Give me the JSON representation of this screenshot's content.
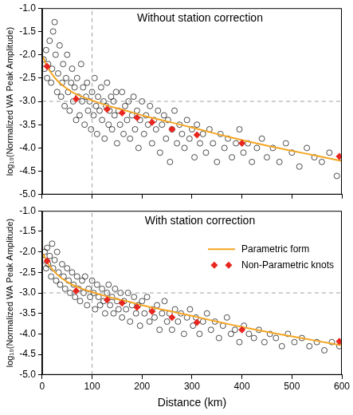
{
  "chart_data": [
    {
      "type": "scatter",
      "title": "Without station correction",
      "y_label": "log₁₀(Normalized WA Peak Amplitude)",
      "xlim": [
        0,
        600
      ],
      "xticks": [
        0,
        100,
        200,
        300,
        400,
        500,
        600
      ],
      "ylim": [
        -5,
        -1
      ],
      "yticks": [
        {
          "value": -5,
          "label": "-5.0"
        },
        -4.5,
        {
          "value": -4,
          "label": "-4.0"
        },
        -3.5,
        {
          "value": -3,
          "label": "-3.0"
        },
        -2.5,
        {
          "value": -2,
          "label": "-2.0"
        },
        -1.5,
        {
          "value": -1,
          "label": "-1.0"
        }
      ],
      "grid": false,
      "tick_labels": "y",
      "vlines": [
        100
      ],
      "hlines": [
        -3
      ],
      "series": [
        {
          "type": "scatter",
          "marker": "circle",
          "color": "#000000",
          "x": [
            3,
            5,
            8,
            10,
            12,
            15,
            18,
            20,
            22,
            25,
            27,
            30,
            32,
            35,
            38,
            40,
            42,
            45,
            48,
            50,
            52,
            55,
            58,
            60,
            62,
            65,
            68,
            70,
            72,
            75,
            78,
            80,
            82,
            85,
            88,
            90,
            92,
            95,
            98,
            100,
            103,
            105,
            108,
            110,
            112,
            115,
            118,
            120,
            123,
            125,
            128,
            130,
            133,
            135,
            138,
            140,
            143,
            145,
            148,
            150,
            153,
            156,
            160,
            163,
            166,
            170,
            173,
            176,
            180,
            183,
            186,
            190,
            193,
            196,
            200,
            204,
            208,
            212,
            216,
            220,
            224,
            228,
            232,
            236,
            240,
            244,
            248,
            252,
            256,
            260,
            265,
            270,
            275,
            280,
            285,
            290,
            295,
            300,
            305,
            310,
            316,
            322,
            328,
            335,
            342,
            350,
            357,
            365,
            372,
            380,
            388,
            395,
            403,
            412,
            420,
            430,
            440,
            450,
            462,
            475,
            488,
            500,
            515,
            530,
            545,
            560,
            575,
            590,
            598
          ],
          "values": [
            -2.1,
            -2.3,
            -1.9,
            -2.5,
            -2.2,
            -1.7,
            -2.6,
            -2.3,
            -1.5,
            -1.3,
            -2.0,
            -2.8,
            -2.4,
            -1.8,
            -2.9,
            -2.6,
            -2.2,
            -3.1,
            -2.5,
            -2.0,
            -2.8,
            -3.2,
            -2.6,
            -2.3,
            -3.0,
            -2.7,
            -3.4,
            -2.5,
            -2.9,
            -3.3,
            -2.2,
            -3.0,
            -2.7,
            -3.5,
            -2.9,
            -2.6,
            -3.2,
            -3.0,
            -3.6,
            -2.8,
            -3.3,
            -2.5,
            -3.1,
            -3.7,
            -2.9,
            -3.2,
            -2.7,
            -3.4,
            -3.0,
            -3.8,
            -3.1,
            -2.6,
            -3.5,
            -3.2,
            -2.9,
            -3.6,
            -3.0,
            -3.3,
            -2.8,
            -3.9,
            -3.2,
            -3.5,
            -2.8,
            -3.7,
            -3.1,
            -3.4,
            -3.0,
            -3.8,
            -3.3,
            -2.9,
            -3.6,
            -3.2,
            -4.0,
            -3.4,
            -3.0,
            -3.7,
            -3.3,
            -3.5,
            -3.1,
            -3.9,
            -3.4,
            -3.6,
            -3.2,
            -4.1,
            -3.5,
            -3.3,
            -3.8,
            -3.4,
            -4.3,
            -3.6,
            -3.2,
            -3.9,
            -3.5,
            -3.7,
            -4.0,
            -3.4,
            -3.8,
            -3.6,
            -4.2,
            -3.5,
            -3.9,
            -3.7,
            -4.1,
            -3.6,
            -3.9,
            -4.3,
            -3.7,
            -4.0,
            -3.8,
            -4.2,
            -3.9,
            -3.6,
            -4.1,
            -3.9,
            -4.3,
            -4.0,
            -3.8,
            -4.2,
            -4.0,
            -4.3,
            -3.9,
            -4.1,
            -4.4,
            -4.0,
            -4.2,
            -4.3,
            -4.1,
            -4.6,
            -4.2
          ]
        },
        {
          "type": "line",
          "color": "#f5a623",
          "x": [
            2,
            10,
            20,
            30,
            40,
            50,
            60,
            80,
            100,
            125,
            150,
            175,
            200,
            250,
            300,
            350,
            400,
            450,
            500,
            550,
            600
          ],
          "values": [
            -2.05,
            -2.25,
            -2.42,
            -2.55,
            -2.65,
            -2.73,
            -2.8,
            -2.9,
            -2.98,
            -3.07,
            -3.15,
            -3.22,
            -3.3,
            -3.43,
            -3.56,
            -3.7,
            -3.83,
            -3.95,
            -4.06,
            -4.17,
            -4.28
          ]
        },
        {
          "type": "scatter",
          "marker": "diamond",
          "color": "#e8251f",
          "x": [
            10,
            68,
            130,
            160,
            190,
            220,
            260,
            310,
            400,
            595
          ],
          "values": [
            -2.25,
            -2.95,
            -3.17,
            -3.25,
            -3.35,
            -3.45,
            -3.6,
            -3.72,
            -3.9,
            -4.18
          ]
        }
      ]
    },
    {
      "type": "scatter",
      "title": "With station correction",
      "x_label": "Distance (km)",
      "y_label": "log₁₀(Normalized WA Peak Amplitude)",
      "xlim": [
        0,
        600
      ],
      "xticks": [
        0,
        100,
        200,
        300,
        400,
        500,
        600
      ],
      "ylim": [
        -5,
        -1
      ],
      "yticks": [
        {
          "value": -5,
          "label": "-5.0"
        },
        -4.5,
        {
          "value": -4,
          "label": "-4.0"
        },
        -3.5,
        {
          "value": -3,
          "label": "-3.0"
        },
        -2.5,
        {
          "value": -2,
          "label": "-2.0"
        },
        -1.5,
        {
          "value": -1,
          "label": "-1.0"
        }
      ],
      "grid": false,
      "legend": "upper right",
      "vlines": [
        100
      ],
      "hlines": [
        -3
      ],
      "series": [
        {
          "type": "scatter",
          "marker": "circle",
          "color": "#000000",
          "x": [
            3,
            5,
            8,
            10,
            12,
            15,
            18,
            20,
            22,
            25,
            28,
            30,
            33,
            36,
            40,
            43,
            46,
            50,
            53,
            56,
            60,
            63,
            66,
            70,
            73,
            76,
            80,
            83,
            86,
            90,
            93,
            96,
            100,
            103,
            106,
            110,
            113,
            116,
            120,
            123,
            126,
            130,
            133,
            136,
            140,
            143,
            146,
            150,
            153,
            157,
            160,
            164,
            168,
            172,
            176,
            180,
            184,
            188,
            192,
            196,
            200,
            205,
            210,
            215,
            220,
            225,
            230,
            235,
            240,
            245,
            250,
            255,
            260,
            266,
            272,
            278,
            284,
            290,
            296,
            302,
            308,
            315,
            322,
            330,
            338,
            346,
            354,
            362,
            370,
            378,
            386,
            395,
            404,
            414,
            424,
            434,
            445,
            456,
            468,
            480,
            492,
            505,
            520,
            535,
            550,
            565,
            580,
            595
          ],
          "values": [
            -2.2,
            -2.0,
            -2.4,
            -1.9,
            -2.3,
            -2.1,
            -2.6,
            -1.8,
            -2.4,
            -2.2,
            -2.7,
            -2.0,
            -2.5,
            -2.8,
            -2.3,
            -2.6,
            -2.9,
            -2.4,
            -2.7,
            -3.0,
            -2.5,
            -2.8,
            -3.1,
            -2.6,
            -2.9,
            -3.2,
            -2.7,
            -3.0,
            -2.6,
            -3.3,
            -2.9,
            -3.1,
            -2.7,
            -3.0,
            -3.4,
            -2.8,
            -3.1,
            -3.3,
            -2.9,
            -3.2,
            -3.5,
            -3.0,
            -2.8,
            -3.3,
            -3.1,
            -3.5,
            -2.9,
            -3.2,
            -3.4,
            -3.0,
            -3.6,
            -3.2,
            -3.4,
            -3.0,
            -3.7,
            -3.3,
            -3.1,
            -3.5,
            -3.3,
            -3.8,
            -3.2,
            -3.5,
            -3.1,
            -3.7,
            -3.4,
            -3.6,
            -3.3,
            -3.9,
            -3.5,
            -3.2,
            -3.7,
            -3.5,
            -3.9,
            -3.4,
            -3.7,
            -3.5,
            -4.0,
            -3.6,
            -3.4,
            -3.8,
            -3.6,
            -4.0,
            -3.7,
            -3.5,
            -3.9,
            -3.7,
            -4.1,
            -3.8,
            -3.6,
            -4.0,
            -3.9,
            -4.2,
            -3.8,
            -4.0,
            -4.1,
            -3.9,
            -4.2,
            -4.0,
            -4.1,
            -4.3,
            -4.0,
            -4.2,
            -4.1,
            -4.3,
            -4.2,
            -4.4,
            -4.2,
            -4.3
          ]
        },
        {
          "name": "Parametric form",
          "type": "line",
          "color": "#f5a623",
          "x": [
            2,
            10,
            20,
            30,
            40,
            50,
            60,
            80,
            100,
            125,
            150,
            175,
            200,
            250,
            300,
            350,
            400,
            450,
            500,
            550,
            600
          ],
          "values": [
            -2.05,
            -2.25,
            -2.42,
            -2.55,
            -2.65,
            -2.73,
            -2.8,
            -2.9,
            -2.98,
            -3.07,
            -3.15,
            -3.22,
            -3.3,
            -3.43,
            -3.56,
            -3.7,
            -3.83,
            -3.95,
            -4.06,
            -4.17,
            -4.28
          ]
        },
        {
          "name": "Non-Parametric knots",
          "type": "scatter",
          "marker": "diamond",
          "color": "#e8251f",
          "x": [
            10,
            68,
            130,
            160,
            190,
            220,
            260,
            310,
            400,
            595
          ],
          "values": [
            -2.22,
            -2.95,
            -3.17,
            -3.25,
            -3.35,
            -3.45,
            -3.6,
            -3.72,
            -3.9,
            -4.18
          ]
        }
      ]
    }
  ]
}
